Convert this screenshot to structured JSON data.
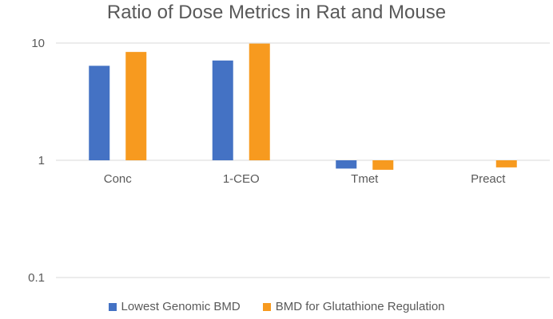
{
  "chart_data": {
    "type": "bar",
    "title": "Ratio of Dose Metrics in Rat and Mouse",
    "y_scale": "log",
    "ylim": [
      0.1,
      10
    ],
    "yticks": [
      {
        "value": 10,
        "label": "10"
      },
      {
        "value": 1,
        "label": "1"
      },
      {
        "value": 0.1,
        "label": "0.1"
      }
    ],
    "categories": [
      "Conc",
      "1-CEO",
      "Tmet",
      "Preact"
    ],
    "series": [
      {
        "name": "Lowest Genomic BMD",
        "color": "#4472C4",
        "values": [
          6.4,
          7.1,
          0.85,
          null
        ]
      },
      {
        "name": "BMD for Glutathione Regulation",
        "color": "#F79A1F",
        "values": [
          8.4,
          9.9,
          0.83,
          0.87
        ]
      }
    ],
    "gridlines": true,
    "legend_position": "bottom"
  }
}
